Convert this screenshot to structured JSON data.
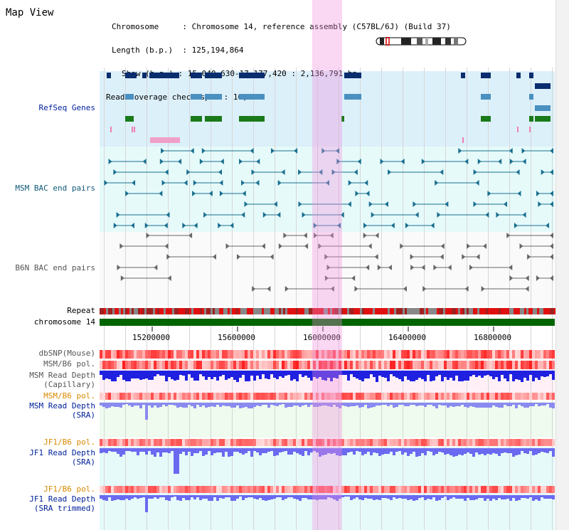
{
  "page": {
    "title": "Map View"
  },
  "info": {
    "chromosome_key": "Chromosome",
    "chromosome_val": "Chromosome 14, reference assembly (C57BL/6J) (Build 37)",
    "length_key": "Length (b.p.)",
    "length_val": "125,194,864",
    "show_key": "Show (b.p.)",
    "show_val": "15,040,630-17,177,420 : 2,136,791 bp",
    "coverage_key": "Read coverage check span",
    "coverage_val": "10,000"
  },
  "tracks": {
    "refseq": "RefSeq Genes",
    "msm_bac": "MSM BAC end pairs",
    "b6n_bac": "B6N BAC end pairs",
    "repeat": "Repeat",
    "chromosome": "chromosome 14",
    "dbsnp": "dbSNP(Mouse)",
    "msm_b6_pol": "MSM/B6 pol.",
    "msm_depth_cap_1": "MSM Read Depth",
    "msm_depth_cap_2": "(Capillary)",
    "msm_b6_pol2": "MSM/B6 pol.",
    "msm_depth_sra_1": "MSM Read Depth",
    "msm_depth_sra_2": "(SRA)",
    "jf1_b6_pol": "JF1/B6 pol.",
    "jf1_depth_sra_1": "JF1 Read Depth",
    "jf1_depth_sra_2": "(SRA)",
    "jf1_b6_pol2": "JF1/B6 pol.",
    "jf1_depth_trim_1": "JF1 Read Depth",
    "jf1_depth_trim_2": "(SRA trimmed)"
  },
  "axis": {
    "ticks": [
      "15200000",
      "15600000",
      "16000000",
      "16400000",
      "16800000"
    ]
  },
  "colors": {
    "refseq_bg": "#dcf0fa",
    "bac_bg": "#e6fafa",
    "chrom": "#006400",
    "repeat_red": "#e01010",
    "depth_blue": "#2020e0",
    "depth_light": "#8a8af0",
    "highlight": "#f0a0e0"
  }
}
